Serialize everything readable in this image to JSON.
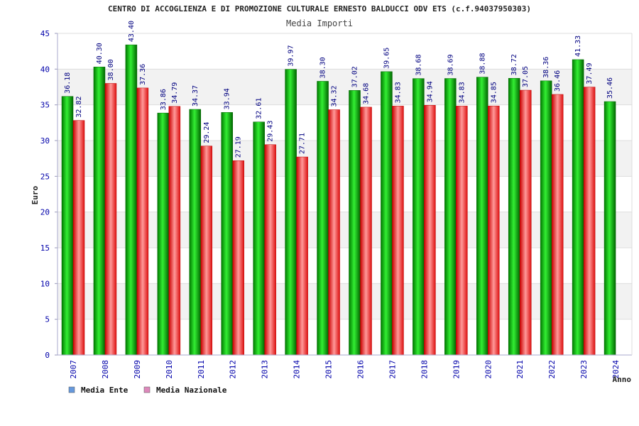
{
  "chart_data": {
    "type": "bar",
    "title": "CENTRO DI ACCOGLIENZA E DI PROMOZIONE CULTURALE ERNESTO BALDUCCI ODV ETS (c.f.94037950303)",
    "subtitle": "Media Importi",
    "xlabel": "Anno",
    "ylabel": "Euro",
    "ylim": [
      0,
      45
    ],
    "yticks": [
      0,
      5,
      10,
      15,
      20,
      25,
      30,
      35,
      40,
      45
    ],
    "grid": true,
    "legend_position": "bottom-left",
    "categories": [
      "2007",
      "2008",
      "2009",
      "2010",
      "2011",
      "2012",
      "2013",
      "2014",
      "2015",
      "2016",
      "2017",
      "2018",
      "2019",
      "2020",
      "2021",
      "2022",
      "2023",
      "2024"
    ],
    "series": [
      {
        "name": "Media Ente",
        "color": "#00aa00",
        "legend_color": "#6699dd",
        "values": [
          36.18,
          40.3,
          43.4,
          33.86,
          34.37,
          33.94,
          32.61,
          39.97,
          38.3,
          37.02,
          39.65,
          38.68,
          38.69,
          38.88,
          38.72,
          38.36,
          41.33,
          35.46
        ],
        "labels": [
          "36.18",
          "40.30",
          "43.40",
          "33.86",
          "34.37",
          "33.94",
          "32.61",
          "39.97",
          "38.30",
          "37.02",
          "39.65",
          "38.68",
          "38.69",
          "38.88",
          "38.72",
          "38.36",
          "41.33",
          "35.46"
        ]
      },
      {
        "name": "Media Nazionale",
        "color": "#ee2222",
        "legend_color": "#dd88bb",
        "values": [
          32.82,
          38.0,
          37.36,
          34.79,
          29.24,
          27.19,
          29.43,
          27.71,
          34.32,
          34.68,
          34.83,
          34.94,
          34.83,
          34.85,
          37.05,
          36.46,
          37.49,
          null
        ],
        "labels": [
          "32.82",
          "38.00",
          "37.36",
          "34.79",
          "29.24",
          "27.19",
          "29.43",
          "27.71",
          "34.32",
          "34.68",
          "34.83",
          "34.94",
          "34.83",
          "34.85",
          "37.05",
          "36.46",
          "37.49",
          null
        ]
      }
    ]
  }
}
